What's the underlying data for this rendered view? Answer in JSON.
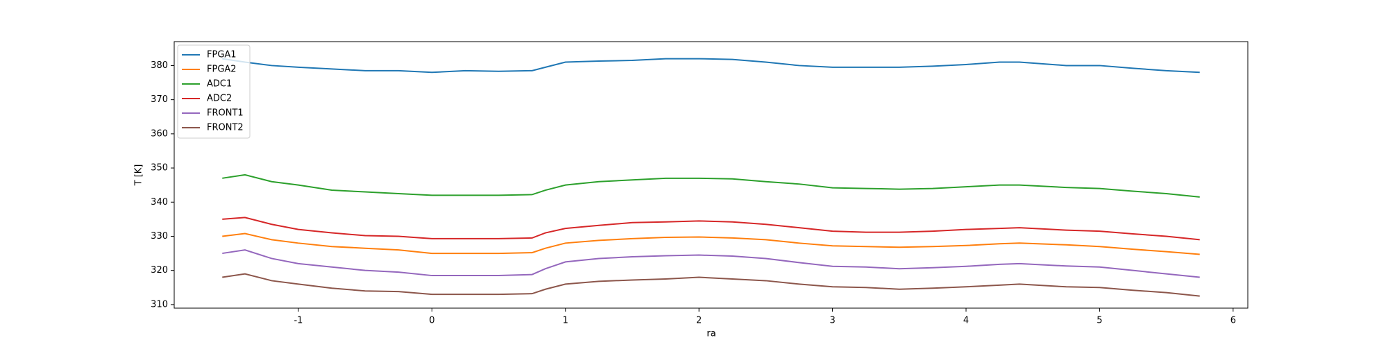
{
  "chart_data": {
    "type": "line",
    "xlabel": "ra",
    "ylabel": "T [K]",
    "x": [
      -1.57,
      -1.4,
      -1.2,
      -1,
      -0.75,
      -0.5,
      -0.25,
      0,
      0.25,
      0.5,
      0.75,
      0.85,
      1,
      1.25,
      1.5,
      1.75,
      2,
      2.25,
      2.5,
      2.75,
      3,
      3.25,
      3.5,
      3.75,
      4,
      4.25,
      4.4,
      4.75,
      5,
      5.25,
      5.5,
      5.75
    ],
    "series": [
      {
        "name": "FPGA1",
        "color": "#1f77b4",
        "values": [
          382,
          381,
          380,
          379.5,
          379,
          378.5,
          378.5,
          378,
          378.5,
          378.3,
          378.5,
          379.5,
          381,
          381.3,
          381.5,
          382,
          382,
          381.8,
          381,
          380,
          379.5,
          379.5,
          379.5,
          379.8,
          380.3,
          381,
          381,
          380,
          380,
          379.2,
          378.5,
          378
        ]
      },
      {
        "name": "FPGA2",
        "color": "#ff7f0e",
        "values": [
          330,
          330.8,
          329,
          328,
          327,
          326.5,
          326,
          325,
          325,
          325,
          325.2,
          326.5,
          328,
          328.8,
          329.3,
          329.7,
          329.8,
          329.5,
          329,
          328,
          327.2,
          327,
          326.8,
          327,
          327.3,
          327.8,
          328,
          327.5,
          327,
          326.2,
          325.5,
          324.7
        ]
      },
      {
        "name": "ADC1",
        "color": "#2ca02c",
        "values": [
          347,
          348,
          346,
          345,
          343.5,
          343,
          342.5,
          342,
          342,
          342,
          342.2,
          343.5,
          345,
          346,
          346.5,
          347,
          347,
          346.8,
          346,
          345.3,
          344.2,
          344,
          343.8,
          344,
          344.5,
          345,
          345,
          344.3,
          344,
          343.2,
          342.5,
          341.5
        ]
      },
      {
        "name": "ADC2",
        "color": "#d62728",
        "values": [
          335,
          335.5,
          333.5,
          332,
          331,
          330.2,
          330,
          329.3,
          329.3,
          329.3,
          329.5,
          331,
          332.3,
          333.2,
          334,
          334.2,
          334.5,
          334.2,
          333.5,
          332.5,
          331.5,
          331.2,
          331.2,
          331.5,
          332,
          332.3,
          332.5,
          331.8,
          331.5,
          330.7,
          330,
          329
        ]
      },
      {
        "name": "FRONT1",
        "color": "#9467bd",
        "values": [
          325,
          326,
          323.5,
          322,
          321,
          320,
          319.5,
          318.5,
          318.5,
          318.5,
          318.8,
          320.5,
          322.5,
          323.5,
          324,
          324.3,
          324.5,
          324.2,
          323.5,
          322.3,
          321.2,
          321,
          320.5,
          320.8,
          321.2,
          321.8,
          322,
          321.3,
          321,
          320,
          319,
          318
        ]
      },
      {
        "name": "FRONT2",
        "color": "#8c564b",
        "values": [
          318,
          319,
          317,
          316,
          314.8,
          314,
          313.8,
          313,
          313,
          313,
          313.2,
          314.5,
          316,
          316.8,
          317.2,
          317.5,
          318,
          317.5,
          317,
          316,
          315.2,
          315,
          314.5,
          314.8,
          315.2,
          315.7,
          316,
          315.2,
          315,
          314.2,
          313.5,
          312.5
        ]
      }
    ],
    "xlim": [
      -1.93,
      6.11
    ],
    "xticks": [
      -1,
      0,
      1,
      2,
      3,
      4,
      5,
      6
    ],
    "ylim": [
      308.96,
      387.0
    ],
    "yticks": [
      310,
      320,
      330,
      340,
      350,
      360,
      370,
      380
    ],
    "grid": false,
    "legend": "upper left"
  }
}
